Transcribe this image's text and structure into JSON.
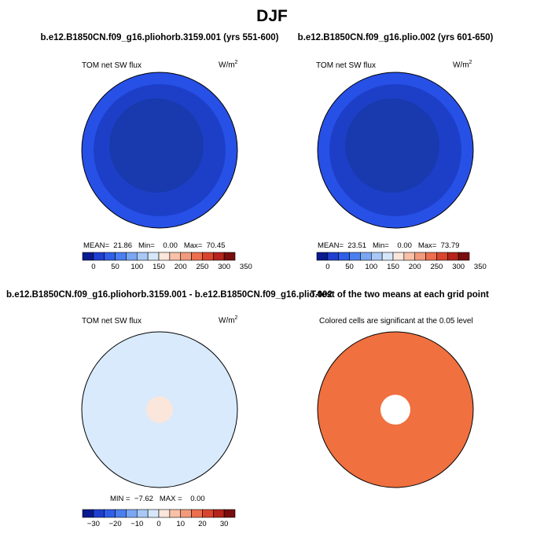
{
  "figure": {
    "title": "DJF"
  },
  "panels": [
    {
      "title": "b.e12.B1850CN.f09_g16.pliohorb.3159.001 (yrs 551-600)",
      "left_label": "TOM net SW flux",
      "units": "W/m",
      "units_sup": "2",
      "stats": {
        "mean_label": "MEAN=",
        "mean": "21.86",
        "min_label": "Min=",
        "min": "0.00",
        "max_label": "Max=",
        "max": "70.45"
      }
    },
    {
      "title": "b.e12.B1850CN.f09_g16.plio.002 (yrs 601-650)",
      "left_label": "TOM net SW flux",
      "units": "W/m",
      "units_sup": "2",
      "stats": {
        "mean_label": "MEAN=",
        "mean": "23.51",
        "min_label": "Min=",
        "min": "0.00",
        "max_label": "Max=",
        "max": "73.79"
      }
    },
    {
      "title": "b.e12.B1850CN.f09_g16.pliohorb.3159.001 - b.e12.B1850CN.f09_g16.plio.002",
      "left_label": "TOM net SW flux",
      "units": "W/m",
      "units_sup": "2",
      "stats": {
        "min_label": "MIN =",
        "min": "−7.62",
        "max_label": "MAX =",
        "max": "0.00"
      }
    },
    {
      "title": "T-test of the two means at each grid point",
      "left_label": "Colored cells are significant at the 0.05 level"
    }
  ],
  "colorbars": {
    "abs": {
      "ticks": [
        "0",
        "50",
        "100",
        "150",
        "200",
        "250",
        "300",
        "350"
      ],
      "colors": [
        "#0a1a8f",
        "#1f3fd0",
        "#2f5fe8",
        "#4a7ff0",
        "#7aa6f3",
        "#a9c8f6",
        "#d6e7fb",
        "#fbe6dc",
        "#f8c1a8",
        "#f39a7c",
        "#ec6f4f",
        "#d9452c",
        "#b3241b",
        "#7a0d0d"
      ]
    },
    "diff": {
      "ticks": [
        "−30",
        "−20",
        "−10",
        "0",
        "10",
        "20",
        "30"
      ],
      "colors": [
        "#0a1a8f",
        "#1f3fd0",
        "#2f5fe8",
        "#4a7ff0",
        "#7aa6f3",
        "#a9c8f6",
        "#d6e7fb",
        "#fbe6dc",
        "#f8c1a8",
        "#f39a7c",
        "#ec6f4f",
        "#d9452c",
        "#b3241b",
        "#7a0d0d"
      ]
    }
  },
  "chart_data": [
    {
      "type": "heatmap",
      "projection": "north polar stereographic",
      "title": "b.e12.B1850CN.f09_g16.pliohorb.3159.001 (yrs 551-600)",
      "variable": "TOM net SW flux",
      "units": "W/m2",
      "mean": 21.86,
      "min": 0.0,
      "max": 70.45,
      "colorbar_ticks": [
        0,
        50,
        100,
        150,
        200,
        250,
        300,
        350
      ],
      "colors": {
        "outer_ring": "#2750e6",
        "inner": "#1d3fc8",
        "pole": "#183aa8"
      }
    },
    {
      "type": "heatmap",
      "projection": "north polar stereographic",
      "title": "b.e12.B1850CN.f09_g16.plio.002 (yrs 601-650)",
      "variable": "TOM net SW flux",
      "units": "W/m2",
      "mean": 23.51,
      "min": 0.0,
      "max": 73.79,
      "colorbar_ticks": [
        0,
        50,
        100,
        150,
        200,
        250,
        300,
        350
      ],
      "colors": {
        "outer_ring": "#2750e6",
        "inner": "#1d3fc8",
        "pole": "#183aa8"
      }
    },
    {
      "type": "heatmap",
      "projection": "north polar stereographic",
      "title": "b.e12.B1850CN.f09_g16.pliohorb.3159.001 - b.e12.B1850CN.f09_g16.plio.002",
      "variable": "TOM net SW flux",
      "units": "W/m2",
      "min": -7.62,
      "max": 0.0,
      "colorbar_ticks": [
        -30,
        -20,
        -10,
        0,
        10,
        20,
        30
      ],
      "colors": {
        "field": "#d8eafc",
        "pole": "#fbe6dc"
      }
    },
    {
      "type": "heatmap",
      "projection": "north polar stereographic",
      "title": "T-test of the two means at each grid point",
      "subtitle": "Colored cells are significant at the 0.05 level",
      "colors": {
        "significant": "#f0703f",
        "not_significant": "#ffffff"
      }
    }
  ]
}
